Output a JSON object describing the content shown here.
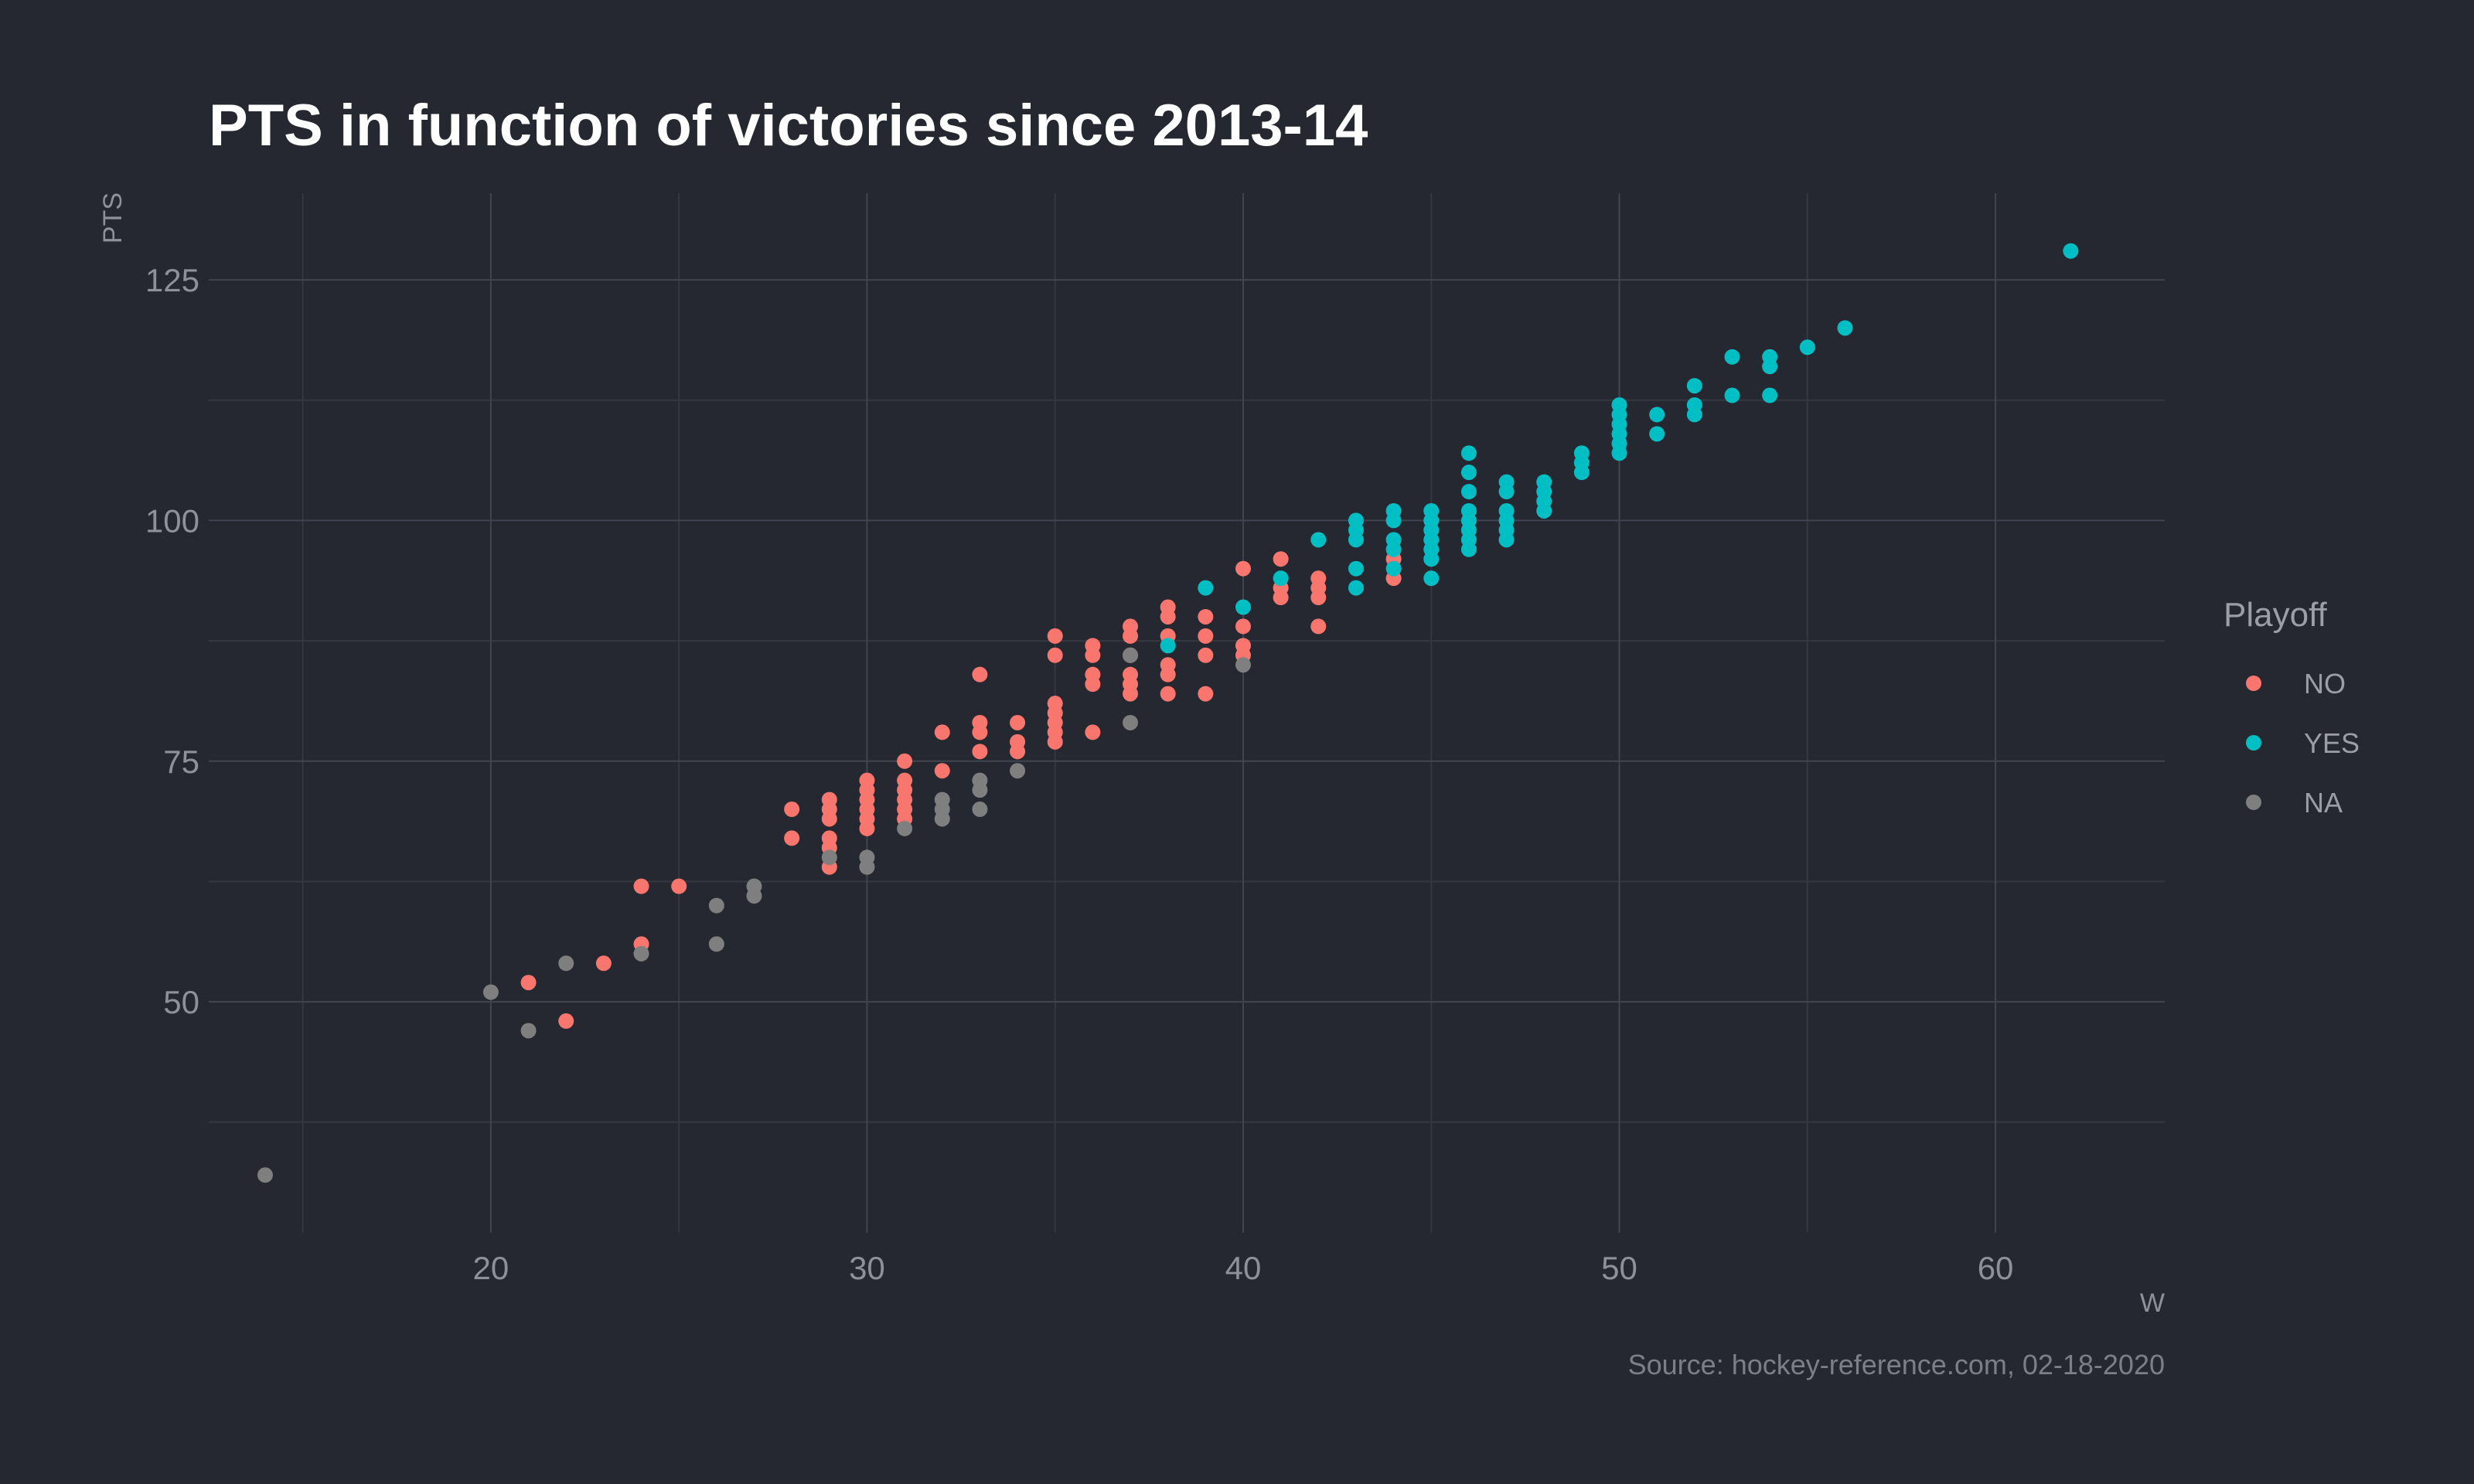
{
  "chart_data": {
    "type": "scatter",
    "title": "PTS in function of victories since 2013-14",
    "xlabel": "W",
    "ylabel": "PTS",
    "caption": "Source: hockey-reference.com, 02-18-2020",
    "xlim": [
      12.5,
      64.5
    ],
    "ylim": [
      26,
      134
    ],
    "x_ticks": [
      20,
      30,
      40,
      50,
      60
    ],
    "y_ticks": [
      50,
      75,
      100,
      125
    ],
    "grid": true,
    "legend": {
      "title": "Playoff",
      "position": "right",
      "entries": [
        {
          "label": "NO",
          "color": "#f8766d"
        },
        {
          "label": "YES",
          "color": "#00bfc4"
        },
        {
          "label": "NA",
          "color": "#7f7f7f"
        }
      ]
    },
    "series": [
      {
        "name": "NO",
        "color": "#f8766d",
        "points": [
          [
            21,
            52
          ],
          [
            22,
            48
          ],
          [
            23,
            54
          ],
          [
            24,
            56
          ],
          [
            24,
            62
          ],
          [
            25,
            62
          ],
          [
            28,
            67
          ],
          [
            28,
            70
          ],
          [
            29,
            64
          ],
          [
            29,
            66
          ],
          [
            29,
            67
          ],
          [
            29,
            69
          ],
          [
            29,
            70
          ],
          [
            29,
            71
          ],
          [
            30,
            68
          ],
          [
            30,
            69
          ],
          [
            30,
            70
          ],
          [
            30,
            71
          ],
          [
            30,
            72
          ],
          [
            30,
            73
          ],
          [
            31,
            69
          ],
          [
            31,
            70
          ],
          [
            31,
            71
          ],
          [
            31,
            72
          ],
          [
            31,
            73
          ],
          [
            31,
            75
          ],
          [
            32,
            74
          ],
          [
            32,
            78
          ],
          [
            33,
            76
          ],
          [
            33,
            78
          ],
          [
            33,
            79
          ],
          [
            33,
            84
          ],
          [
            34,
            76
          ],
          [
            34,
            77
          ],
          [
            34,
            79
          ],
          [
            35,
            77
          ],
          [
            35,
            78
          ],
          [
            35,
            79
          ],
          [
            35,
            80
          ],
          [
            35,
            81
          ],
          [
            35,
            86
          ],
          [
            35,
            88
          ],
          [
            36,
            78
          ],
          [
            36,
            83
          ],
          [
            36,
            84
          ],
          [
            36,
            86
          ],
          [
            36,
            87
          ],
          [
            37,
            82
          ],
          [
            37,
            83
          ],
          [
            37,
            84
          ],
          [
            37,
            86
          ],
          [
            37,
            88
          ],
          [
            37,
            89
          ],
          [
            38,
            82
          ],
          [
            38,
            84
          ],
          [
            38,
            85
          ],
          [
            38,
            88
          ],
          [
            38,
            90
          ],
          [
            38,
            91
          ],
          [
            39,
            82
          ],
          [
            39,
            86
          ],
          [
            39,
            88
          ],
          [
            39,
            90
          ],
          [
            40,
            86
          ],
          [
            40,
            87
          ],
          [
            40,
            89
          ],
          [
            40,
            95
          ],
          [
            41,
            92
          ],
          [
            41,
            93
          ],
          [
            41,
            96
          ],
          [
            42,
            89
          ],
          [
            42,
            92
          ],
          [
            42,
            93
          ],
          [
            42,
            94
          ],
          [
            44,
            94
          ],
          [
            44,
            96
          ]
        ]
      },
      {
        "name": "YES",
        "color": "#00bfc4",
        "points": [
          [
            38,
            87
          ],
          [
            39,
            93
          ],
          [
            40,
            91
          ],
          [
            41,
            94
          ],
          [
            42,
            98
          ],
          [
            43,
            93
          ],
          [
            43,
            95
          ],
          [
            43,
            98
          ],
          [
            43,
            99
          ],
          [
            43,
            100
          ],
          [
            44,
            95
          ],
          [
            44,
            97
          ],
          [
            44,
            98
          ],
          [
            44,
            100
          ],
          [
            44,
            101
          ],
          [
            45,
            94
          ],
          [
            45,
            96
          ],
          [
            45,
            97
          ],
          [
            45,
            98
          ],
          [
            45,
            99
          ],
          [
            45,
            100
          ],
          [
            45,
            101
          ],
          [
            46,
            97
          ],
          [
            46,
            98
          ],
          [
            46,
            99
          ],
          [
            46,
            100
          ],
          [
            46,
            101
          ],
          [
            46,
            103
          ],
          [
            46,
            105
          ],
          [
            46,
            107
          ],
          [
            47,
            98
          ],
          [
            47,
            99
          ],
          [
            47,
            100
          ],
          [
            47,
            101
          ],
          [
            47,
            103
          ],
          [
            47,
            104
          ],
          [
            48,
            101
          ],
          [
            48,
            102
          ],
          [
            48,
            103
          ],
          [
            48,
            104
          ],
          [
            49,
            105
          ],
          [
            49,
            106
          ],
          [
            49,
            107
          ],
          [
            50,
            107
          ],
          [
            50,
            108
          ],
          [
            50,
            109
          ],
          [
            50,
            110
          ],
          [
            50,
            111
          ],
          [
            50,
            112
          ],
          [
            51,
            109
          ],
          [
            51,
            111
          ],
          [
            52,
            111
          ],
          [
            52,
            112
          ],
          [
            52,
            114
          ],
          [
            53,
            113
          ],
          [
            53,
            117
          ],
          [
            54,
            113
          ],
          [
            54,
            116
          ],
          [
            54,
            117
          ],
          [
            55,
            118
          ],
          [
            56,
            120
          ],
          [
            62,
            128
          ]
        ]
      },
      {
        "name": "NA",
        "color": "#7f7f7f",
        "points": [
          [
            14,
            32
          ],
          [
            20,
            51
          ],
          [
            21,
            47
          ],
          [
            22,
            54
          ],
          [
            24,
            55
          ],
          [
            26,
            56
          ],
          [
            26,
            60
          ],
          [
            27,
            61
          ],
          [
            27,
            62
          ],
          [
            29,
            65
          ],
          [
            30,
            64
          ],
          [
            30,
            65
          ],
          [
            31,
            68
          ],
          [
            32,
            69
          ],
          [
            32,
            70
          ],
          [
            32,
            71
          ],
          [
            33,
            70
          ],
          [
            33,
            72
          ],
          [
            33,
            73
          ],
          [
            34,
            74
          ],
          [
            37,
            79
          ],
          [
            37,
            86
          ],
          [
            40,
            85
          ]
        ]
      }
    ]
  }
}
